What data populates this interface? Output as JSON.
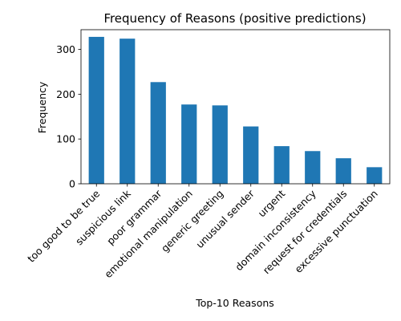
{
  "chart_data": {
    "type": "bar",
    "title": "Frequency of Reasons (positive predictions)",
    "xlabel": "Top-10 Reasons",
    "ylabel": "Frequency",
    "categories": [
      "too good to be true",
      "suspicious link",
      "poor grammar",
      "emotional manipulation",
      "generic greeting",
      "unusual sender",
      "urgent",
      "domain inconsistency",
      "request for credentials",
      "excessive punctuation"
    ],
    "values": [
      328,
      324,
      227,
      177,
      175,
      128,
      84,
      73,
      57,
      37
    ],
    "yticks": [
      0,
      100,
      200,
      300
    ],
    "ylim": [
      0,
      344
    ],
    "grid": false,
    "legend": "none",
    "bar_color": "#1f77b4"
  }
}
